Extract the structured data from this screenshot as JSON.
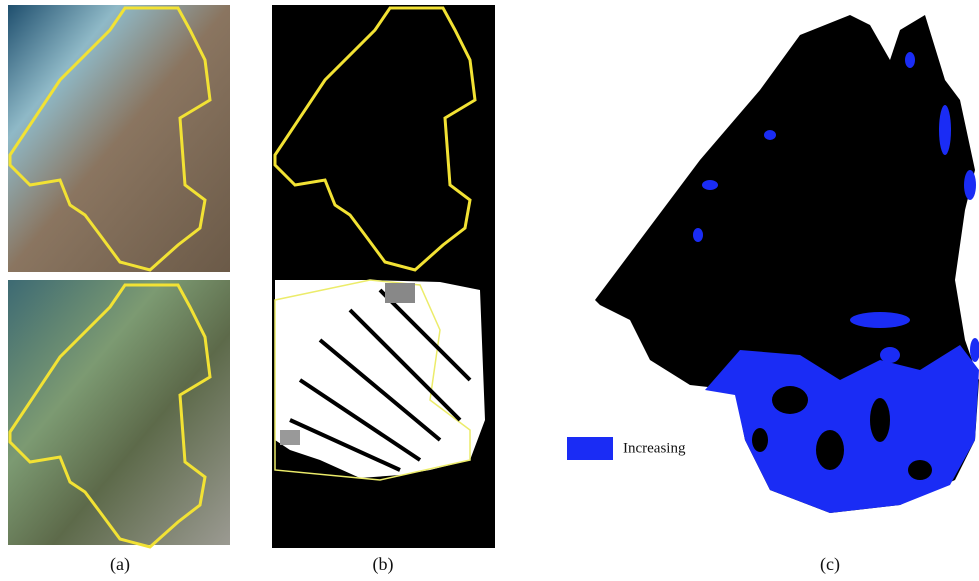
{
  "panels": [
    {
      "label": "(a)"
    },
    {
      "label": "(b)"
    },
    {
      "label": "(c)"
    }
  ],
  "legend": {
    "label": "Increasing"
  }
}
